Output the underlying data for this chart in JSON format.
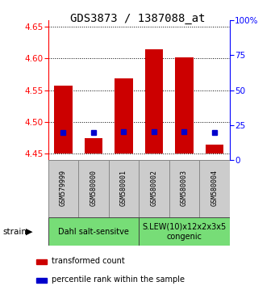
{
  "title": "GDS3873 / 1387088_at",
  "samples": [
    "GSM579999",
    "GSM580000",
    "GSM580001",
    "GSM580002",
    "GSM580003",
    "GSM580004"
  ],
  "bar_bottoms": [
    4.45,
    4.45,
    4.45,
    4.45,
    4.45,
    4.45
  ],
  "bar_tops": [
    4.557,
    4.474,
    4.569,
    4.614,
    4.601,
    4.464
  ],
  "percentile_values": [
    4.484,
    4.484,
    4.485,
    4.485,
    4.485,
    4.484
  ],
  "bar_color": "#cc0000",
  "percentile_color": "#0000cc",
  "ylim_left": [
    4.44,
    4.66
  ],
  "ylim_right": [
    0,
    100
  ],
  "yticks_left": [
    4.45,
    4.5,
    4.55,
    4.6,
    4.65
  ],
  "yticks_right": [
    0,
    25,
    50,
    75,
    100
  ],
  "ytick_labels_right": [
    "0",
    "25",
    "50",
    "75",
    "100%"
  ],
  "groups": [
    {
      "label": "Dahl salt-sensitve",
      "start": 0,
      "end": 3,
      "color": "#77dd77"
    },
    {
      "label": "S.LEW(10)x12x2x3x5\ncongenic",
      "start": 3,
      "end": 6,
      "color": "#77dd77"
    }
  ],
  "strain_label": "strain",
  "legend_items": [
    {
      "color": "#cc0000",
      "label": "transformed count"
    },
    {
      "color": "#0000cc",
      "label": "percentile rank within the sample"
    }
  ],
  "bar_width": 0.6,
  "title_fontsize": 10,
  "tick_fontsize": 7.5,
  "sample_fontsize": 6,
  "group_fontsize": 7,
  "legend_fontsize": 7,
  "gray_box_color": "#cccccc",
  "gray_box_edge": "#888888"
}
